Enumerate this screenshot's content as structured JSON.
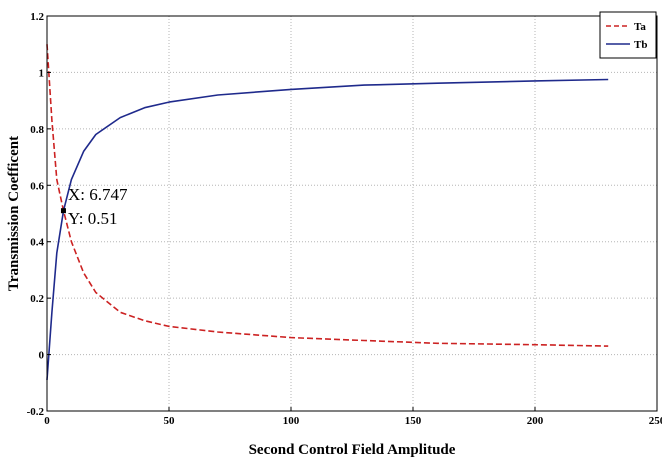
{
  "chart_data": {
    "type": "line",
    "title": "",
    "xlabel": "Second Control Field Amplitude",
    "ylabel": "Transmission Coefficent",
    "xlim": [
      0,
      250
    ],
    "ylim": [
      -0.2,
      1.2
    ],
    "xticks": [
      "0",
      "50",
      "100",
      "150",
      "200",
      "250"
    ],
    "yticks": [
      "-0.2",
      "0",
      "0.2",
      "0.4",
      "0.6",
      "0.8",
      "1",
      "1.2"
    ],
    "grid": true,
    "legend_position": "top-right",
    "series": [
      {
        "name": "Ta",
        "color": "#cc2222",
        "style": "dashed",
        "x": [
          0,
          2,
          4,
          6.747,
          10,
          15,
          20,
          30,
          40,
          50,
          70,
          100,
          130,
          160,
          200,
          230
        ],
        "y": [
          1.1,
          0.83,
          0.62,
          0.51,
          0.4,
          0.29,
          0.22,
          0.15,
          0.12,
          0.1,
          0.08,
          0.06,
          0.05,
          0.04,
          0.035,
          0.03
        ]
      },
      {
        "name": "Tb",
        "color": "#1f2a8c",
        "style": "solid",
        "x": [
          0,
          2,
          4,
          6.747,
          10,
          15,
          20,
          30,
          40,
          50,
          70,
          100,
          130,
          160,
          200,
          230
        ],
        "y": [
          -0.09,
          0.15,
          0.36,
          0.51,
          0.62,
          0.72,
          0.78,
          0.84,
          0.875,
          0.895,
          0.92,
          0.94,
          0.955,
          0.962,
          0.97,
          0.975
        ]
      }
    ],
    "datatip": {
      "x_text": "X: 6.747",
      "y_text": "Y: 0.51",
      "x": 6.747,
      "y": 0.51
    }
  }
}
